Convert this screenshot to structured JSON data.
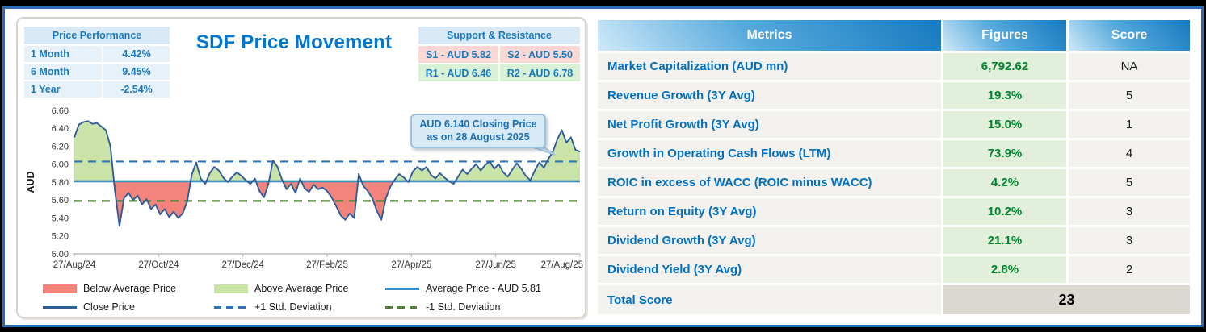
{
  "colors": {
    "accent_blue": "#0070C0",
    "support_bg": "#FAD9D5",
    "resistance_bg": "#D9F2D5",
    "lightblue_bg": "#D9E9F5",
    "figures_bg": "#E2EFDA",
    "figures_text": "#00862F",
    "row_bg": "#F3F1EE",
    "total_bg": "#DBD8D1",
    "callout_bg": "#D6E9F5"
  },
  "left_panel": {
    "title": "SDF Price Movement",
    "price_performance": {
      "header": "Price Performance",
      "rows": [
        {
          "label": "1 Month",
          "value": "4.42%"
        },
        {
          "label": "6 Month",
          "value": "9.45%"
        },
        {
          "label": "1 Year",
          "value": "-2.54%"
        }
      ]
    },
    "support_resistance": {
      "header": "Support & Resistance",
      "cells": [
        {
          "label": "S1 - AUD 5.82",
          "type": "support"
        },
        {
          "label": "S2 - AUD 5.50",
          "type": "support"
        },
        {
          "label": "R1 - AUD 6.46",
          "type": "resistance"
        },
        {
          "label": "R2 - AUD 6.78",
          "type": "resistance"
        }
      ]
    },
    "annotation": {
      "line1": "AUD 6.140 Closing Price",
      "line2": "as on 28 August 2025"
    },
    "legend": [
      {
        "swatch": "below-average-fill",
        "label": "Below Average Price"
      },
      {
        "swatch": "above-average-fill",
        "label": "Above Average Price"
      },
      {
        "swatch": "average-price-line",
        "label": "Average Price - AUD 5.81"
      },
      {
        "swatch": "close-price-line",
        "label": "Close Price"
      },
      {
        "swatch": "plus-std-dashed",
        "label": "+1 Std. Deviation"
      },
      {
        "swatch": "minus-std-dashed",
        "label": "-1 Std. Deviation"
      }
    ]
  },
  "chart_data": {
    "type": "line",
    "title": "SDF Price Movement",
    "ylabel": "AUD",
    "ylim": [
      5.0,
      6.6
    ],
    "ytick_step": 0.2,
    "yticks": [
      "6.60",
      "6.40",
      "6.20",
      "6.00",
      "5.80",
      "5.60",
      "5.40",
      "5.20",
      "5.00"
    ],
    "xticklabels": [
      "27/Aug/24",
      "27/Oct/24",
      "27/Dec/24",
      "27/Feb/25",
      "27/Apr/25",
      "27/Jun/25",
      "27/Aug/25"
    ],
    "grid": false,
    "legend_position": "bottom",
    "average_price": 5.81,
    "plus1_std": 6.03,
    "minus1_std": 5.59,
    "closing_price_last": 6.14,
    "closing_date_last": "28 August 2025",
    "close_prices": [
      6.3,
      6.44,
      6.47,
      6.48,
      6.45,
      6.46,
      6.42,
      6.38,
      6.2,
      5.7,
      5.31,
      5.62,
      5.68,
      5.6,
      5.65,
      5.55,
      5.61,
      5.5,
      5.55,
      5.44,
      5.5,
      5.41,
      5.47,
      5.4,
      5.45,
      5.58,
      5.88,
      6.02,
      5.84,
      5.78,
      5.9,
      5.97,
      5.93,
      5.85,
      5.8,
      5.86,
      5.91,
      5.87,
      5.82,
      5.78,
      5.84,
      5.7,
      5.63,
      5.78,
      6.04,
      5.97,
      5.83,
      5.72,
      5.78,
      5.68,
      5.84,
      5.73,
      5.69,
      5.77,
      5.72,
      5.74,
      5.7,
      5.63,
      5.53,
      5.43,
      5.38,
      5.45,
      5.4,
      5.89,
      5.76,
      5.7,
      5.62,
      5.48,
      5.38,
      5.62,
      5.75,
      5.83,
      5.89,
      5.85,
      5.8,
      5.92,
      5.97,
      5.93,
      5.97,
      5.88,
      5.84,
      5.9,
      5.85,
      5.81,
      5.78,
      5.86,
      5.94,
      5.89,
      5.95,
      6.0,
      5.93,
      5.99,
      6.03,
      5.95,
      6.0,
      5.91,
      5.86,
      5.94,
      6.01,
      5.95,
      5.87,
      5.82,
      5.93,
      6.02,
      5.96,
      6.06,
      6.14,
      6.28,
      6.38,
      6.24,
      6.3,
      6.16,
      6.14
    ],
    "colors": {
      "below_avg_fill": "#F4837B",
      "above_avg_fill": "#C9E3A9",
      "close_line": "#2F5D9B",
      "avg_line": "#3390CE",
      "plus_std": "#2E75B6",
      "minus_std": "#548235"
    }
  },
  "right_table": {
    "headers": [
      "Metrics",
      "Figures",
      "Score"
    ],
    "rows": [
      {
        "metric": "Market Capitalization (AUD mn)",
        "figure": "6,792.62",
        "score": "NA"
      },
      {
        "metric": "Revenue Growth (3Y Avg)",
        "figure": "19.3%",
        "score": "5"
      },
      {
        "metric": "Net Profit Growth (3Y Avg)",
        "figure": "15.0%",
        "score": "1"
      },
      {
        "metric": "Growth in Operating Cash Flows (LTM)",
        "figure": "73.9%",
        "score": "4"
      },
      {
        "metric": "ROIC in excess of WACC (ROIC minus WACC)",
        "figure": "4.2%",
        "score": "5"
      },
      {
        "metric": "Return on Equity (3Y Avg)",
        "figure": "10.2%",
        "score": "3"
      },
      {
        "metric": "Dividend Growth (3Y Avg)",
        "figure": "21.1%",
        "score": "3"
      },
      {
        "metric": "Dividend Yield (3Y Avg)",
        "figure": "2.8%",
        "score": "2"
      }
    ],
    "total": {
      "label": "Total Score",
      "value": "23"
    }
  }
}
